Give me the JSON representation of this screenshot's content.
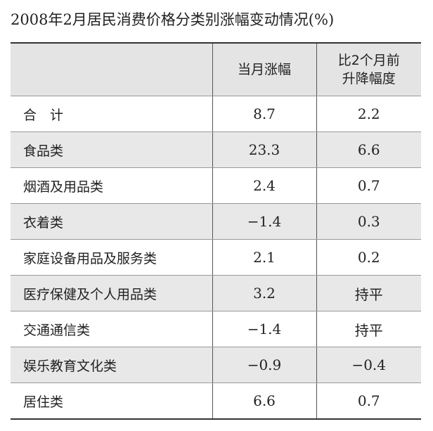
{
  "header": {
    "title": "2008年2月居民消费价格分类别涨幅变动情况(%)"
  },
  "table": {
    "columns": [
      "",
      "当月涨幅",
      "比2个月前\n升降幅度"
    ],
    "rows": [
      [
        "合　计",
        "8.7",
        "2.2"
      ],
      [
        "食品类",
        "23.3",
        "6.6"
      ],
      [
        "烟酒及用品类",
        "2.4",
        "0.7"
      ],
      [
        "衣着类",
        "−1.4",
        "0.3"
      ],
      [
        "家庭设备用品及服务类",
        "2.1",
        "0.2"
      ],
      [
        "医疗保健及个人用品类",
        "3.2",
        "持平"
      ],
      [
        "交通通信类",
        "−1.4",
        "持平"
      ],
      [
        "娱乐教育文化类",
        "−0.9",
        "−0.4"
      ],
      [
        "居住类",
        "6.6",
        "0.7"
      ]
    ]
  }
}
